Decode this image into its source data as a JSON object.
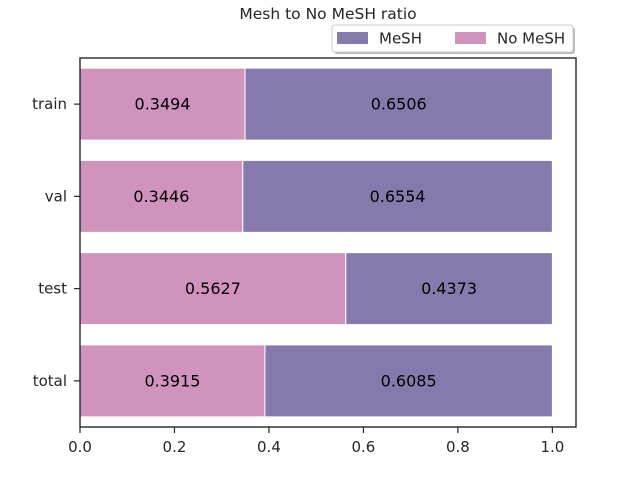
{
  "chart_data": {
    "type": "bar",
    "orientation": "horizontal",
    "stacked": true,
    "title": "Mesh to No MeSH ratio",
    "xlabel": "",
    "ylabel": "",
    "categories": [
      "train",
      "val",
      "test",
      "total"
    ],
    "series": [
      {
        "name": "No MeSH",
        "color": "#cf93bd",
        "values": [
          0.3494,
          0.3446,
          0.5627,
          0.3915
        ],
        "labels": [
          "0.3494",
          "0.3446",
          "0.5627",
          "0.3915"
        ]
      },
      {
        "name": "MeSH",
        "color": "#857aab",
        "values": [
          0.6506,
          0.6554,
          0.4373,
          0.6085
        ],
        "labels": [
          "0.6506",
          "0.6554",
          "0.4373",
          "0.6085"
        ]
      }
    ],
    "legend": {
      "placement": "top-right",
      "entries": [
        {
          "name": "MeSH",
          "color": "#857aab"
        },
        {
          "name": "No MeSH",
          "color": "#cf93bd"
        }
      ]
    },
    "xlim": [
      0,
      1.05
    ],
    "xticks": [
      0.0,
      0.2,
      0.4,
      0.6,
      0.8,
      1.0
    ],
    "xtick_labels": [
      "0.0",
      "0.2",
      "0.4",
      "0.6",
      "0.8",
      "1.0"
    ],
    "grid": false
  }
}
